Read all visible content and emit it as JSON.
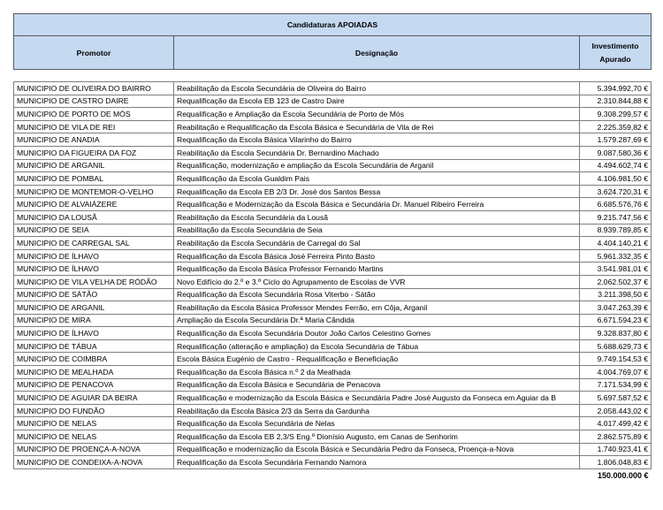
{
  "header": {
    "title": "Candidaturas APOIADAS",
    "columns": [
      "Promotor",
      "Designação",
      "Investimento Apurado"
    ]
  },
  "rows": [
    [
      "MUNICIPIO DE OLIVEIRA DO BAIRRO",
      "Reabilitação da Escola Secundária de Oliveira do Bairro",
      "5.394.992,70 €"
    ],
    [
      "MUNICIPIO DE CASTRO DAIRE",
      "Requalificação da Escola EB 123 de Castro Daire",
      "2.310.844,88 €"
    ],
    [
      "MUNICIPIO DE PORTO DE MÓS",
      "Requalificação e Ampliação da Escola Secundária de Porto de Mós",
      "9.308.299,57 €"
    ],
    [
      "MUNICIPIO DE VILA DE REI",
      "Reabilitação e Requalificação da Escola Básica e Secundária de Vila de Rei",
      "2.225.359,82 €"
    ],
    [
      "MUNICIPIO DE ANADIA",
      "Requalificação da Escola Básica Vilarinho do Bairro",
      "1.579.287,69 €"
    ],
    [
      "MUNICIPIO DA FIGUEIRA DA FOZ",
      "Reabilitação da Escola Secundária Dr. Bernardino Machado",
      "9.087.580,36 €"
    ],
    [
      "MUNICIPIO DE ARGANIL",
      "Requalificação, modernização e ampliação da Escola Secundária de Arganil",
      "4.494.602,74 €"
    ],
    [
      "MUNICIPIO DE POMBAL",
      "Requalificação da Escola Gualdim Pais",
      "4.106.981,50 €"
    ],
    [
      "MUNICIPIO DE MONTEMOR-O-VELHO",
      "Requalificação da Escola EB 2/3 Dr. José dos Santos Bessa",
      "3.624.720,31 €"
    ],
    [
      "MUNICIPIO DE ALVAIÁZERE",
      "Requalificação e Modernização da Escola Básica e Secundária Dr. Manuel Ribeiro Ferreira",
      "6.685.576,76 €"
    ],
    [
      "MUNICIPIO DA LOUSÃ",
      "Reabilitação da Escola Secundária da Lousã",
      "9.215.747,56 €"
    ],
    [
      "MUNICIPIO DE SEIA",
      "Reabilitação da Escola Secundária de Seia",
      "8.939.789,85 €"
    ],
    [
      "MUNICIPIO DE CARREGAL SAL",
      "Reabilitação da Escola Secundária de Carregal do Sal",
      "4.404.140,21 €"
    ],
    [
      "MUNICIPIO DE ÍLHAVO",
      "Requalificação da Escola Básica José Ferreira Pinto Basto",
      "5.961.332,35 €"
    ],
    [
      "MUNICIPIO DE ÍLHAVO",
      "Requalificação da Escola Básica Professor Fernando Martins",
      "3.541.981,01 €"
    ],
    [
      "MUNICIPIO DE VILA VELHA DE RÓDÃO",
      "Novo Edifício do 2.º e 3.º Ciclo do Agrupamento de Escolas de VVR",
      "2.062.502,37 €"
    ],
    [
      "MUNICIPIO DE SÁTÃO",
      "Requalificação da Escola Secundária Rosa Viterbo - Sátão",
      "3.211.398,50 €"
    ],
    [
      "MUNICIPIO DE ARGANIL",
      "Reabilitação da Escola Básica Professor Mendes Ferrão, em Côja, Arganil",
      "3.047.263,39 €"
    ],
    [
      "MUNICIPIO DE MIRA",
      "Ampliação da Escola Secundária Dr.ª Maria Cândida",
      "6.671.594,23 €"
    ],
    [
      "MUNICIPIO DE ÍLHAVO",
      "Requalificação da Escola Secundária Doutor João Carlos Celestino Gomes",
      "9.328.837,80 €"
    ],
    [
      "MUNICIPIO DE TÁBUA",
      "Requalificação (alteração e ampliação) da Escola Secundária de Tábua",
      "5.688.629,73 €"
    ],
    [
      "MUNICIPIO DE COIMBRA",
      "Escola Básica Eugénio de Castro - Requalificação e Beneficiação",
      "9.749.154,53 €"
    ],
    [
      "MUNICIPIO DE MEALHADA",
      "Requalificação da Escola Básica n.º 2 da Mealhada",
      "4.004.769,07 €"
    ],
    [
      "MUNICIPIO DE PENACOVA",
      "Requalificação da Escola Básica e Secundária de Penacova",
      "7.171.534,99 €"
    ],
    [
      "MUNICIPIO DE AGUIAR DA BEIRA",
      "Requalificação e modernização da Escola Básica e Secundária Padre José Augusto da Fonseca em Aguiar da B",
      "5.697.587,52 €"
    ],
    [
      "MUNICIPIO DO FUNDÃO",
      "Reabilitação da Escola Básica 2/3 da Serra da Gardunha",
      "2.058.443,02 €"
    ],
    [
      "MUNICIPIO DE NELAS",
      "Requalificação da Escola Secundária de Nelas",
      "4.017.499,42 €"
    ],
    [
      "MUNICIPIO DE NELAS",
      "Requalificação da Escola EB 2,3/S Eng.º Dionísio Augusto, em Canas de Senhorim",
      "2.862.575,89 €"
    ],
    [
      "MUNICIPIO DE PROENÇA-A-NOVA",
      "Requalificação e modernização da Escola Básica e Secundária Pedro da Fonseca, Proença-a-Nova",
      "1.740.923,41 €"
    ],
    [
      "MUNICIPIO DE CONDEIXA-A-NOVA",
      "Requalificação da Escola Secundária Fernando Namora",
      "1.806.048,83 €"
    ]
  ],
  "total": "150.000.000 €"
}
